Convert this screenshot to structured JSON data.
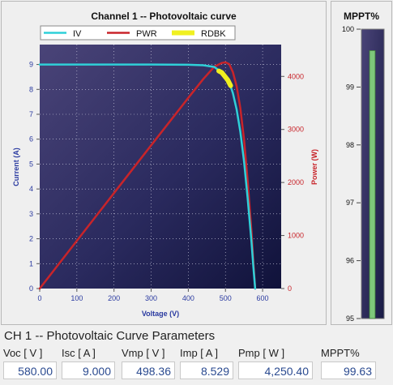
{
  "chart": {
    "title": "Channel 1 -- Photovoltaic curve",
    "legend": [
      {
        "label": "IV",
        "color": "#2fd0d8"
      },
      {
        "label": "PWR",
        "color": "#c8242a"
      },
      {
        "label": "RDBK",
        "color": "#f0f020"
      }
    ],
    "xlabel": "Voltage (V)",
    "ylabel_left": "Current (A)",
    "ylabel_right": "Power  (W)",
    "xticks": [
      "0",
      "100",
      "200",
      "300",
      "400",
      "500",
      "600"
    ],
    "yticks_left": [
      "0",
      "1",
      "2",
      "3",
      "4",
      "5",
      "6",
      "7",
      "8",
      "9"
    ],
    "yticks_right": [
      "0",
      "1000",
      "2000",
      "3000",
      "4000"
    ]
  },
  "chart_data": [
    {
      "type": "line",
      "title": "Channel 1 -- Photovoltaic curve",
      "xlabel": "Voltage (V)",
      "ylabel": "Current (A)",
      "y2label": "Power  (W)",
      "xlim": [
        0,
        650
      ],
      "ylim": [
        0,
        9.8
      ],
      "y2lim": [
        0,
        4600
      ],
      "series": [
        {
          "name": "IV",
          "axis": "left",
          "color": "#2fd0d8",
          "x": [
            0,
            100,
            200,
            300,
            400,
            440,
            470,
            490,
            500,
            510,
            520,
            530,
            540,
            550,
            560,
            570,
            575,
            580
          ],
          "y": [
            9.0,
            9.0,
            9.0,
            9.0,
            8.99,
            8.97,
            8.9,
            8.68,
            8.53,
            8.3,
            7.85,
            7.2,
            6.3,
            5.1,
            3.6,
            1.9,
            0.9,
            0.0
          ]
        },
        {
          "name": "PWR",
          "axis": "right",
          "color": "#c8242a",
          "x": [
            0,
            100,
            200,
            300,
            400,
            440,
            470,
            490,
            500,
            510,
            520,
            530,
            540,
            550,
            560,
            570,
            575,
            580
          ],
          "y": [
            0,
            900,
            1800,
            2700,
            3596,
            3947,
            4183,
            4253,
            4265,
            4233,
            4082,
            3816,
            3402,
            2805,
            2016,
            1083,
            518,
            0
          ]
        },
        {
          "name": "RDBK",
          "axis": "left",
          "color": "#f0f020",
          "x": [
            482,
            490,
            498,
            506,
            514
          ],
          "y": [
            8.74,
            8.68,
            8.53,
            8.38,
            8.15
          ]
        }
      ]
    },
    {
      "type": "bar",
      "title": "MPPT%",
      "categories": [
        "MPPT%"
      ],
      "values": [
        99.63
      ],
      "ylim": [
        95,
        100
      ],
      "yticks": [
        "95",
        "96",
        "97",
        "98",
        "99",
        "100"
      ]
    }
  ],
  "mppt": {
    "title": "MPPT%",
    "ticks": [
      "100",
      "99",
      "98",
      "97",
      "96",
      "95"
    ],
    "value": 99.63,
    "min": 95,
    "max": 100,
    "bar_color": "#7ec87a"
  },
  "params": {
    "title": "CH 1 -- Photovoltaic Curve Parameters",
    "items": [
      {
        "label": "Voc [ V ]",
        "value": "580.00"
      },
      {
        "label": "Isc [ A ]",
        "value": "9.000"
      },
      {
        "label": "Vmp [ V ]",
        "value": "498.36"
      },
      {
        "label": "Imp [ A ]",
        "value": "8.529"
      },
      {
        "label": "Pmp [ W ]",
        "value": "4,250.40"
      },
      {
        "label": "MPPT%",
        "value": "99.63"
      }
    ]
  }
}
